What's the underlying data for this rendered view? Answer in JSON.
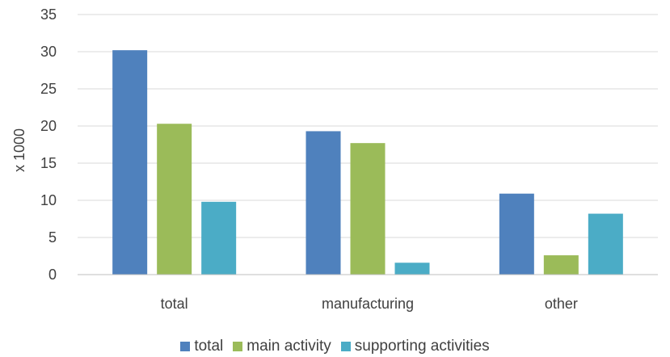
{
  "chart_data": {
    "type": "bar",
    "title": "",
    "xlabel": "",
    "ylabel": "x 1000",
    "categories": [
      "total",
      "manufacturing",
      "other"
    ],
    "series": [
      {
        "name": "total",
        "color": "#4f81bd",
        "values": [
          30.2,
          19.3,
          10.9
        ]
      },
      {
        "name": "main activity",
        "color": "#9bbb59",
        "values": [
          20.3,
          17.7,
          2.6
        ]
      },
      {
        "name": "supporting activities",
        "color": "#4bacc6",
        "values": [
          9.8,
          1.6,
          8.2
        ]
      }
    ],
    "ylim": [
      0,
      35
    ],
    "yticks": [
      0,
      5,
      10,
      15,
      20,
      25,
      30,
      35
    ],
    "grid": true,
    "legend_position": "bottom"
  }
}
